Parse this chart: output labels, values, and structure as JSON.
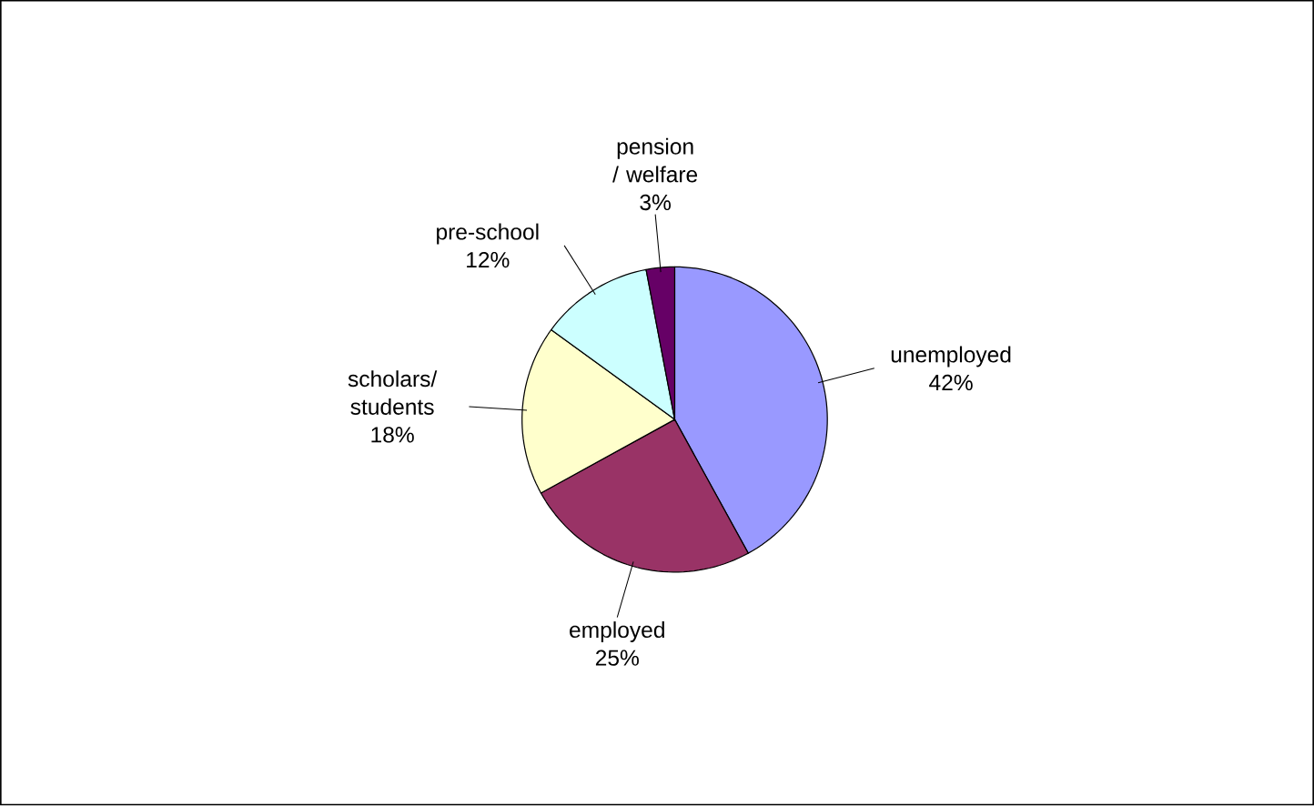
{
  "chart_data": {
    "type": "pie",
    "categories": [
      "unemployed",
      "employed",
      "scholars/ students",
      "pre-school",
      "pension / welfare"
    ],
    "values": [
      42,
      25,
      18,
      12,
      3
    ],
    "value_labels": [
      "42%",
      "25%",
      "18%",
      "12%",
      "3%"
    ],
    "colors": [
      "#9999ff",
      "#993366",
      "#ffffcc",
      "#ccffff",
      "#660066"
    ]
  }
}
